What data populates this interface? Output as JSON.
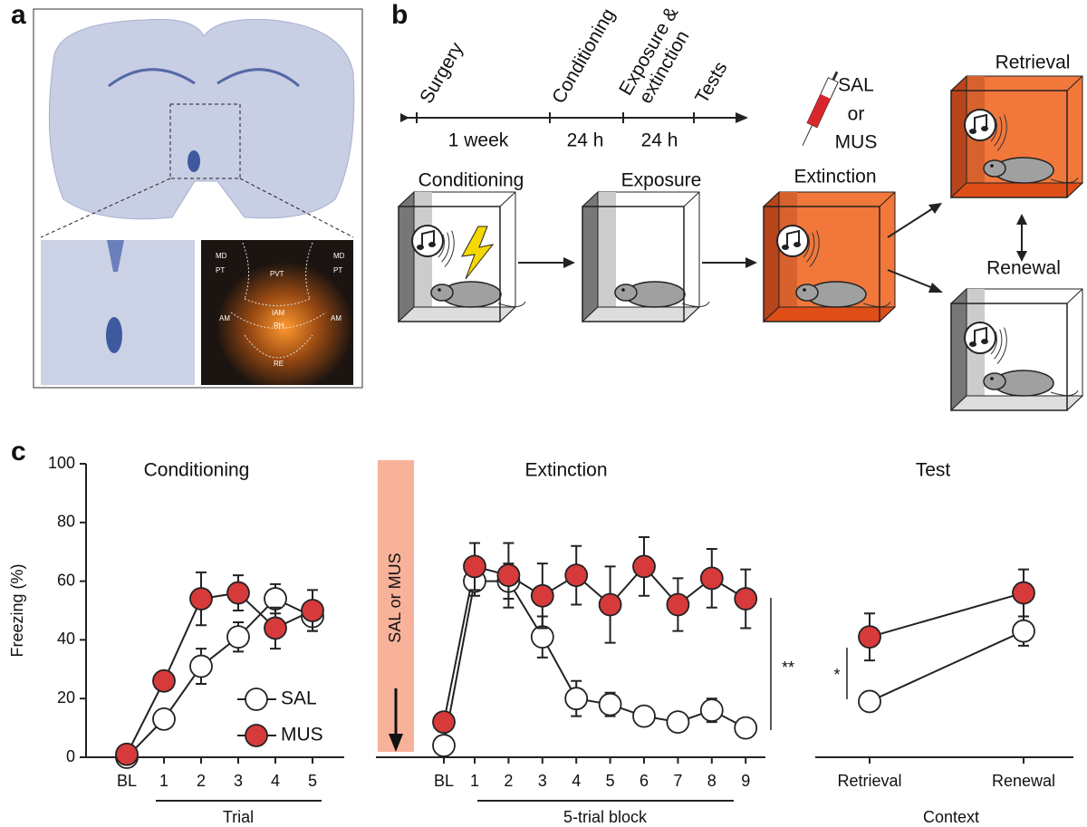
{
  "panel_labels": [
    "a",
    "b",
    "c"
  ],
  "histology": {
    "labels": [
      "MD",
      "MD",
      "PT",
      "PT",
      "PVT",
      "AM",
      "AM",
      "IAM",
      "RH",
      "RE"
    ]
  },
  "timeline": {
    "events": [
      [
        "Surgery"
      ],
      [
        "Conditioning"
      ],
      [
        "Exposure &",
        "extinction"
      ],
      [
        "Tests"
      ]
    ],
    "intervals": [
      "1 week",
      "24 h",
      "24 h"
    ]
  },
  "injection": [
    "SAL",
    "or",
    "MUS"
  ],
  "contexts": [
    "Conditioning",
    "Exposure",
    "Extinction",
    "Retrieval",
    "Renewal"
  ],
  "chart_data": [
    {
      "type": "line",
      "title": "Conditioning",
      "y_label": "Freezing (%)",
      "x_label": "Trial",
      "categories": [
        "BL",
        "1",
        "2",
        "3",
        "4",
        "5"
      ],
      "series": [
        {
          "name": "SAL",
          "color": "#ffffff",
          "values": [
            0,
            13,
            31,
            41,
            54,
            48
          ],
          "errors": [
            0,
            2,
            6,
            5,
            5,
            5
          ]
        },
        {
          "name": "MUS",
          "color": "#d63a3a",
          "values": [
            1,
            26,
            54,
            56,
            44,
            50
          ],
          "errors": [
            0,
            2,
            9,
            6,
            7,
            7
          ]
        }
      ],
      "ylim": [
        0,
        100
      ],
      "yticks": [
        0,
        20,
        40,
        60,
        80,
        100
      ],
      "legend": "lower-right"
    },
    {
      "type": "line",
      "title": "Extinction",
      "x_label": "5-trial block",
      "annotations": [
        "SAL or MUS",
        "**"
      ],
      "categories": [
        "BL",
        "1",
        "2",
        "3",
        "4",
        "5",
        "6",
        "7",
        "8",
        "9"
      ],
      "series": [
        {
          "name": "SAL",
          "color": "#ffffff",
          "values": [
            4,
            60,
            60,
            41,
            20,
            18,
            14,
            12,
            16,
            10
          ],
          "errors": [
            0,
            5,
            6,
            7,
            6,
            4,
            2,
            2,
            4,
            2
          ]
        },
        {
          "name": "MUS",
          "color": "#d63a3a",
          "values": [
            12,
            65,
            62,
            55,
            62,
            52,
            65,
            52,
            61,
            54
          ],
          "errors": [
            0,
            8,
            11,
            11,
            10,
            13,
            10,
            9,
            10,
            10
          ]
        }
      ],
      "ylim": [
        0,
        100
      ]
    },
    {
      "type": "line",
      "title": "Test",
      "x_label": "Context",
      "annotations": [
        "*"
      ],
      "categories": [
        "Retrieval",
        "Renewal"
      ],
      "series": [
        {
          "name": "SAL",
          "color": "#ffffff",
          "values": [
            19,
            43
          ],
          "errors": [
            2,
            5
          ]
        },
        {
          "name": "MUS",
          "color": "#d63a3a",
          "values": [
            41,
            56
          ],
          "errors": [
            8,
            8
          ]
        }
      ],
      "ylim": [
        0,
        100
      ]
    }
  ]
}
